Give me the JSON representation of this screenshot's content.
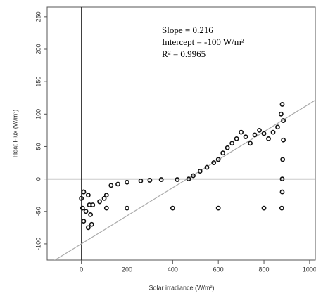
{
  "chart_data": {
    "type": "scatter",
    "xlabel": "Solar irradiance (W/m²)",
    "ylabel": "Heat Flux (W/m²)",
    "annotations": [
      "Slope = 0.216",
      "Intercept = -100 W/m²",
      "R² = 0.9965"
    ],
    "fit_line": {
      "slope": 0.216,
      "intercept": -100,
      "color": "#aaaaaa"
    },
    "color": "#111111",
    "x": [
      10,
      30,
      35,
      20,
      40,
      45,
      30,
      10,
      5,
      0,
      10,
      50,
      80,
      100,
      110,
      130,
      160,
      200,
      260,
      300,
      350,
      420,
      470,
      490,
      520,
      550,
      580,
      600,
      620,
      640,
      660,
      680,
      700,
      720,
      740,
      760,
      780,
      800,
      820,
      840,
      860,
      875,
      880,
      885,
      885,
      882,
      880,
      880,
      878,
      800,
      600,
      400,
      200,
      110
    ],
    "values": [
      -20,
      -25,
      -40,
      -50,
      -55,
      -70,
      -75,
      -65,
      -45,
      -30,
      -20,
      -40,
      -35,
      -30,
      -25,
      -10,
      -8,
      -5,
      -3,
      -2,
      -1,
      -1,
      0,
      5,
      12,
      18,
      25,
      30,
      40,
      48,
      55,
      62,
      72,
      65,
      55,
      68,
      75,
      70,
      62,
      72,
      80,
      100,
      115,
      90,
      60,
      30,
      0,
      -20,
      -45,
      -45,
      -45,
      -45,
      -45,
      -45
    ],
    "xlim": [
      -150,
      1025
    ],
    "ylim": [
      -125,
      265
    ],
    "xticks": [
      0,
      200,
      400,
      600,
      800,
      1000
    ],
    "yticks": [
      -100,
      -50,
      0,
      50,
      100,
      150,
      200,
      250
    ]
  }
}
